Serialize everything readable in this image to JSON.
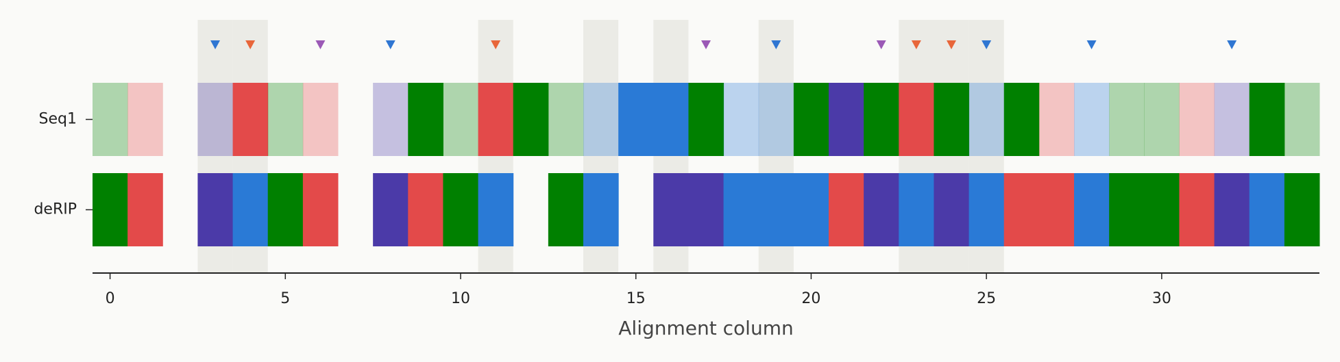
{
  "chart_data": {
    "type": "alignment",
    "xlabel": "Alignment column",
    "xlim": [
      -0.5,
      34.5
    ],
    "xticks": [
      0,
      5,
      10,
      15,
      20,
      25,
      30
    ],
    "highlight_columns": [
      3,
      4,
      11,
      14,
      16,
      19,
      23,
      24,
      25
    ],
    "highlight_color": "#ebebe6",
    "rows": [
      {
        "name": "Seq1",
        "colors": [
          "#0080004d",
          "#e34a4a4d",
          null,
          "#4b3aa84d",
          "#e34a4a",
          "#0080004d",
          "#e34a4a4d",
          null,
          "#4b3aa84d",
          "#008000",
          "#0080004d",
          "#e34a4a",
          "#008000",
          "#0080004d",
          "#2a7ad64d",
          "#2a7ad6",
          "#2a7ad6",
          "#008000",
          "#2a7ad64d",
          "#2a7ad64d",
          "#008000",
          "#4b3aa8",
          "#008000",
          "#e34a4a",
          "#008000",
          "#2a7ad64d",
          "#008000",
          "#e34a4a4d",
          "#2a7ad64d",
          "#0080004d",
          "#0080004d",
          "#e34a4a4d",
          "#4b3aa84d",
          "#008000",
          "#0080004d"
        ]
      },
      {
        "name": "deRIP",
        "colors": [
          "#008000",
          "#e34a4a",
          null,
          "#4b3aa8",
          "#2a7ad6",
          "#008000",
          "#e34a4a",
          null,
          "#4b3aa8",
          "#e34a4a",
          "#008000",
          "#2a7ad6",
          null,
          "#008000",
          "#2a7ad6",
          null,
          "#4b3aa8",
          "#4b3aa8",
          "#2a7ad6",
          "#2a7ad6",
          "#2a7ad6",
          "#e34a4a",
          "#4b3aa8",
          "#2a7ad6",
          "#4b3aa8",
          "#2a7ad6",
          "#e34a4a",
          "#e34a4a",
          "#2a7ad6",
          "#008000",
          "#008000",
          "#e34a4a",
          "#4b3aa8",
          "#2a7ad6",
          "#008000"
        ]
      }
    ],
    "markers": {
      "x": [
        3,
        4,
        6,
        8,
        11,
        17,
        19,
        22,
        23,
        24,
        25,
        28,
        32
      ],
      "colors": [
        "#2f76d2",
        "#e8663a",
        "#9b59b6",
        "#2f76d2",
        "#e8663a",
        "#9b59b6",
        "#2f76d2",
        "#9b59b6",
        "#e8663a",
        "#e8663a",
        "#2f76d2",
        "#2f76d2",
        "#2f76d2"
      ]
    }
  }
}
